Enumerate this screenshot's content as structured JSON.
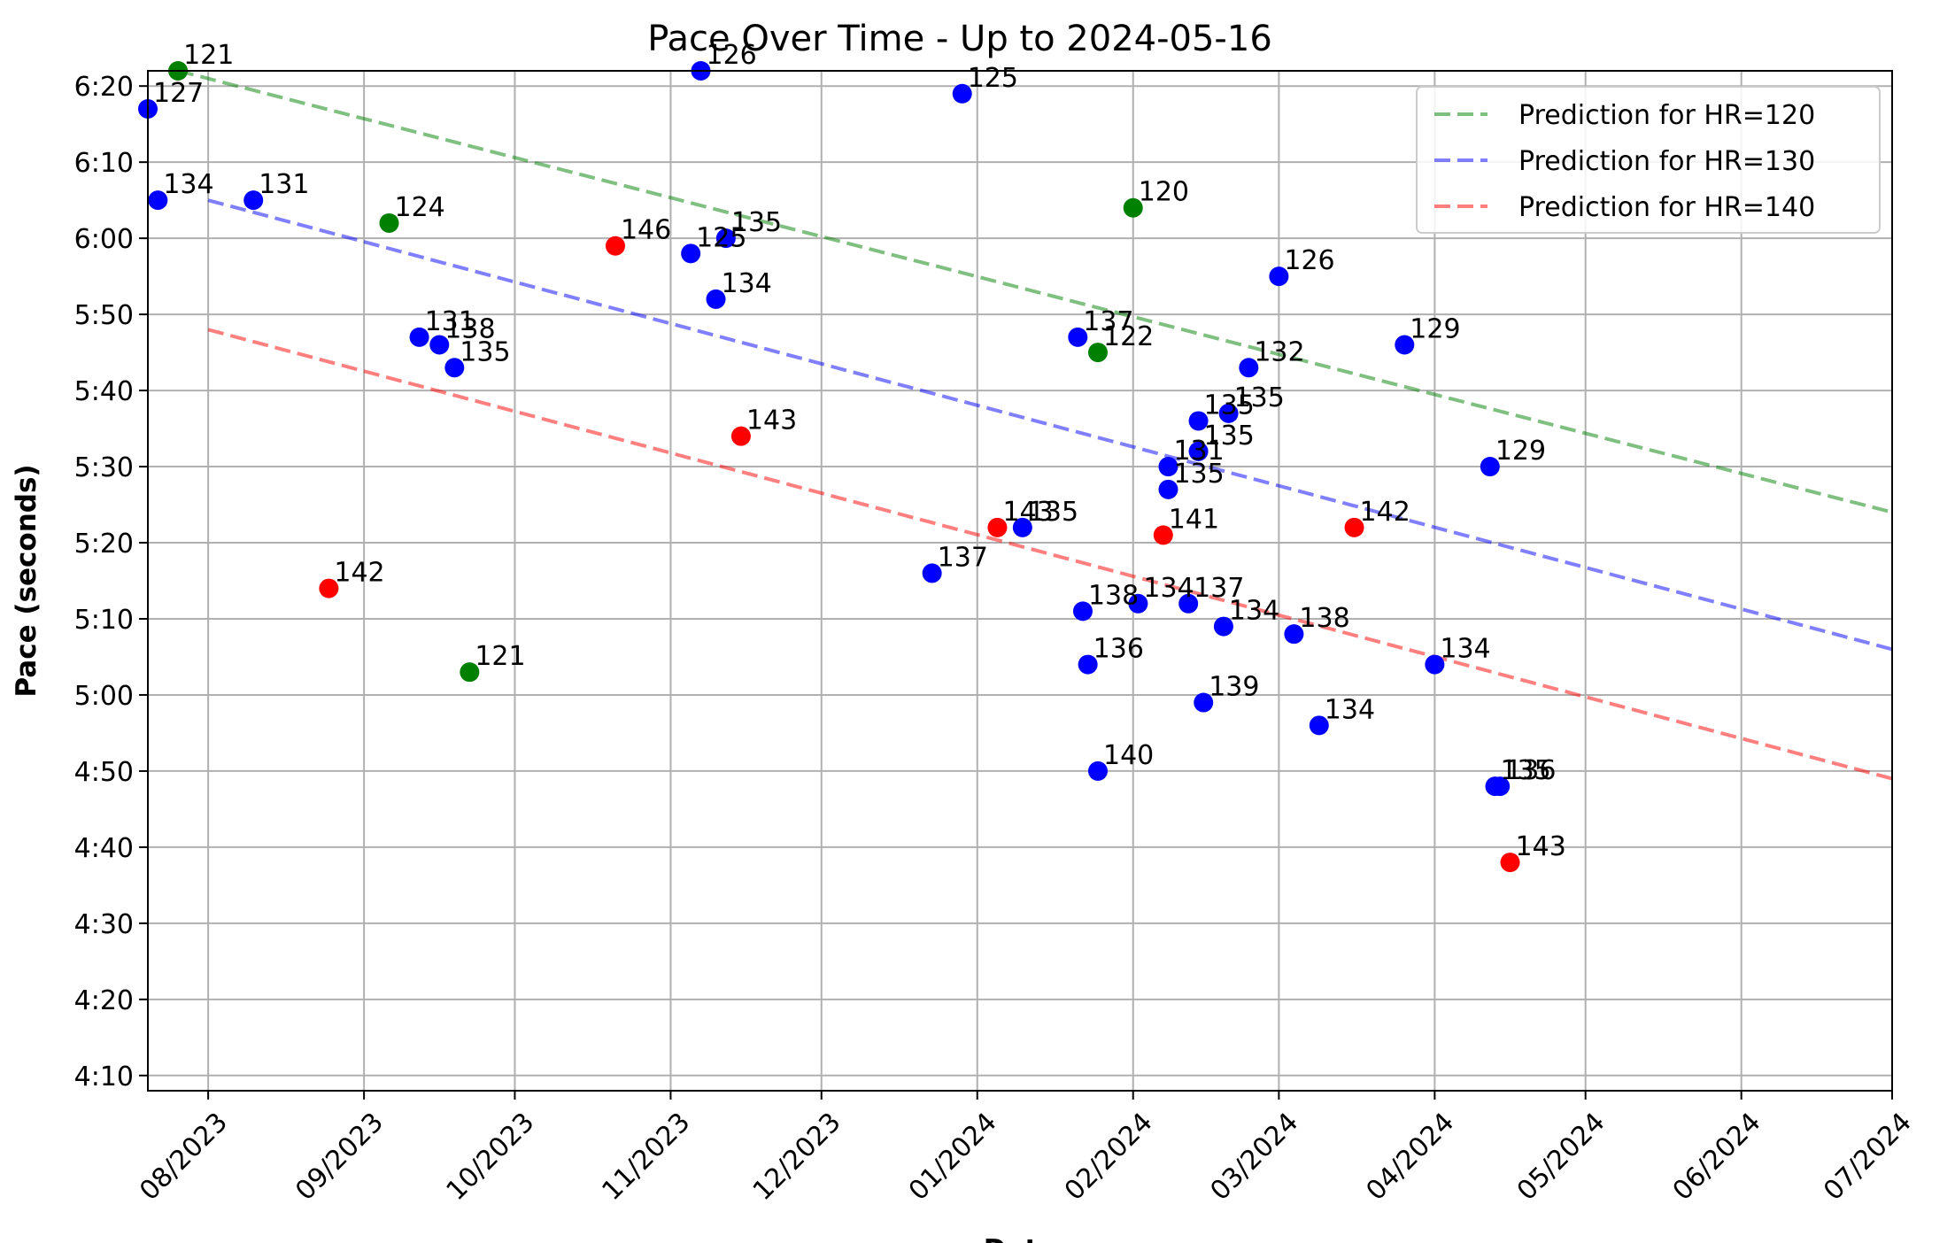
{
  "chart_data": {
    "type": "scatter",
    "title": "Pace Over Time - Up to 2024-05-16",
    "xlabel": "Date",
    "ylabel": "Pace (seconds)",
    "xlim": [
      "2023-07-20",
      "2024-07-01"
    ],
    "ylim": [
      "4:08",
      "6:22"
    ],
    "x_ticks": [
      "08/2023",
      "09/2023",
      "10/2023",
      "11/2023",
      "12/2023",
      "01/2024",
      "02/2024",
      "03/2024",
      "04/2024",
      "05/2024",
      "06/2024",
      "07/2024"
    ],
    "y_ticks": [
      "4:10",
      "4:20",
      "4:30",
      "4:40",
      "4:50",
      "5:00",
      "5:10",
      "5:20",
      "5:30",
      "5:40",
      "5:50",
      "6:00",
      "6:10",
      "6:20"
    ],
    "grid": true,
    "legend_position": "upper right",
    "colors": {
      "hr120": "#008000",
      "hr130": "#0000ff",
      "hr140": "#ff0000"
    },
    "points": [
      {
        "date": "2023-07-20",
        "pace": "6:17",
        "hr": "127",
        "color": "blue"
      },
      {
        "date": "2023-07-26",
        "pace": "6:22",
        "hr": "121",
        "color": "green"
      },
      {
        "date": "2023-07-22",
        "pace": "6:05",
        "hr": "134",
        "color": "blue"
      },
      {
        "date": "2023-08-10",
        "pace": "6:05",
        "hr": "131",
        "color": "blue"
      },
      {
        "date": "2023-09-06",
        "pace": "6:02",
        "hr": "124",
        "color": "green"
      },
      {
        "date": "2023-08-25",
        "pace": "5:14",
        "hr": "142",
        "color": "red"
      },
      {
        "date": "2023-09-12",
        "pace": "5:47",
        "hr": "131",
        "color": "blue"
      },
      {
        "date": "2023-09-16",
        "pace": "5:46",
        "hr": "138",
        "color": "blue"
      },
      {
        "date": "2023-09-19",
        "pace": "5:43",
        "hr": "135",
        "color": "blue"
      },
      {
        "date": "2023-09-22",
        "pace": "5:03",
        "hr": "121",
        "color": "green"
      },
      {
        "date": "2023-10-21",
        "pace": "5:59",
        "hr": "146",
        "color": "red"
      },
      {
        "date": "2023-11-05",
        "pace": "5:58",
        "hr": "125",
        "color": "blue"
      },
      {
        "date": "2023-11-12",
        "pace": "6:00",
        "hr": "135",
        "color": "blue"
      },
      {
        "date": "2023-11-07",
        "pace": "6:22",
        "hr": "126",
        "color": "blue"
      },
      {
        "date": "2023-11-10",
        "pace": "5:52",
        "hr": "134",
        "color": "blue"
      },
      {
        "date": "2023-11-15",
        "pace": "5:34",
        "hr": "143",
        "color": "red"
      },
      {
        "date": "2023-12-29",
        "pace": "6:19",
        "hr": "125",
        "color": "blue"
      },
      {
        "date": "2023-12-23",
        "pace": "5:16",
        "hr": "137",
        "color": "blue"
      },
      {
        "date": "2024-01-05",
        "pace": "5:22",
        "hr": "143",
        "color": "red"
      },
      {
        "date": "2024-01-10",
        "pace": "5:22",
        "hr": "135",
        "color": "blue"
      },
      {
        "date": "2024-01-21",
        "pace": "5:47",
        "hr": "137",
        "color": "blue"
      },
      {
        "date": "2024-01-25",
        "pace": "5:45",
        "hr": "122",
        "color": "green"
      },
      {
        "date": "2024-02-01",
        "pace": "6:04",
        "hr": "120",
        "color": "green"
      },
      {
        "date": "2024-01-22",
        "pace": "5:11",
        "hr": "138",
        "color": "blue"
      },
      {
        "date": "2024-01-23",
        "pace": "5:04",
        "hr": "136",
        "color": "blue"
      },
      {
        "date": "2024-01-25",
        "pace": "4:50",
        "hr": "140",
        "color": "blue"
      },
      {
        "date": "2024-02-02",
        "pace": "5:12",
        "hr": "134",
        "color": "blue"
      },
      {
        "date": "2024-02-07",
        "pace": "5:21",
        "hr": "141",
        "color": "red"
      },
      {
        "date": "2024-02-08",
        "pace": "5:30",
        "hr": "131",
        "color": "blue"
      },
      {
        "date": "2024-02-08",
        "pace": "5:27",
        "hr": "135",
        "color": "blue"
      },
      {
        "date": "2024-02-12",
        "pace": "5:12",
        "hr": "137",
        "color": "blue"
      },
      {
        "date": "2024-02-14",
        "pace": "5:36",
        "hr": "135",
        "color": "blue"
      },
      {
        "date": "2024-02-14",
        "pace": "5:32",
        "hr": "135",
        "color": "blue"
      },
      {
        "date": "2024-02-15",
        "pace": "4:59",
        "hr": "139",
        "color": "blue"
      },
      {
        "date": "2024-02-19",
        "pace": "5:09",
        "hr": "134",
        "color": "blue"
      },
      {
        "date": "2024-02-20",
        "pace": "5:37",
        "hr": "135",
        "color": "blue"
      },
      {
        "date": "2024-02-24",
        "pace": "5:43",
        "hr": "132",
        "color": "blue"
      },
      {
        "date": "2024-03-01",
        "pace": "5:55",
        "hr": "126",
        "color": "blue"
      },
      {
        "date": "2024-03-04",
        "pace": "5:08",
        "hr": "138",
        "color": "blue"
      },
      {
        "date": "2024-03-09",
        "pace": "4:56",
        "hr": "134",
        "color": "blue"
      },
      {
        "date": "2024-03-16",
        "pace": "5:22",
        "hr": "142",
        "color": "red"
      },
      {
        "date": "2024-03-26",
        "pace": "5:46",
        "hr": "129",
        "color": "blue"
      },
      {
        "date": "2024-04-01",
        "pace": "5:04",
        "hr": "134",
        "color": "blue"
      },
      {
        "date": "2024-04-12",
        "pace": "5:30",
        "hr": "129",
        "color": "blue"
      },
      {
        "date": "2024-04-13",
        "pace": "4:48",
        "hr": "135",
        "color": "blue"
      },
      {
        "date": "2024-04-14",
        "pace": "4:48",
        "hr": "136",
        "color": "blue"
      },
      {
        "date": "2024-04-16",
        "pace": "4:38",
        "hr": "143",
        "color": "red"
      }
    ],
    "series": [
      {
        "name": "Prediction for HR=120",
        "color": "green",
        "style": "dashed",
        "x": [
          "2023-07-26",
          "2024-07-01"
        ],
        "y": [
          "6:22",
          "5:24"
        ]
      },
      {
        "name": "Prediction for HR=130",
        "color": "blue",
        "style": "dashed",
        "x": [
          "2023-08-01",
          "2024-07-01"
        ],
        "y": [
          "6:05",
          "5:06"
        ]
      },
      {
        "name": "Prediction for HR=140",
        "color": "red",
        "style": "dashed",
        "x": [
          "2023-08-01",
          "2024-07-01"
        ],
        "y": [
          "5:48",
          "4:49"
        ]
      }
    ]
  }
}
